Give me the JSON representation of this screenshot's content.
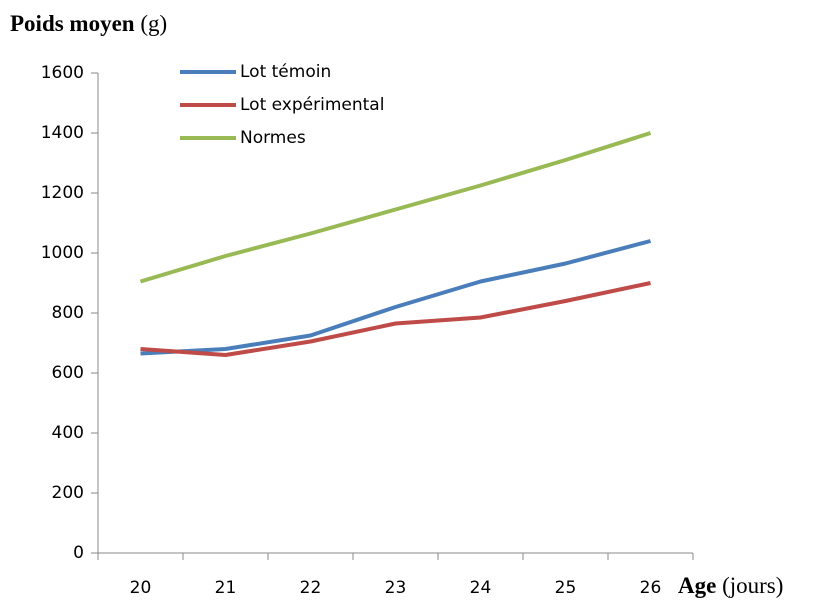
{
  "chart_data": {
    "type": "line",
    "y_label": "Poids moyen",
    "y_unit": "(g)",
    "x_label": "Age",
    "x_unit": "(jours)",
    "categories": [
      "20",
      "21",
      "22",
      "23",
      "24",
      "25",
      "26"
    ],
    "series": [
      {
        "name": "Lot témoin",
        "color": "#4a7ebb",
        "values": [
          665,
          680,
          725,
          820,
          905,
          965,
          1040
        ]
      },
      {
        "name": "Lot expérimental",
        "color": "#be4b48",
        "values": [
          680,
          660,
          705,
          765,
          785,
          840,
          900
        ]
      },
      {
        "name": "Normes",
        "color": "#98b954",
        "values": [
          905,
          990,
          1065,
          1145,
          1225,
          1310,
          1400
        ]
      }
    ],
    "ylim": [
      0,
      1600
    ],
    "yticks": [
      0,
      200,
      400,
      600,
      800,
      1000,
      1200,
      1400,
      1600
    ],
    "grid": false,
    "legend": "top-left"
  }
}
